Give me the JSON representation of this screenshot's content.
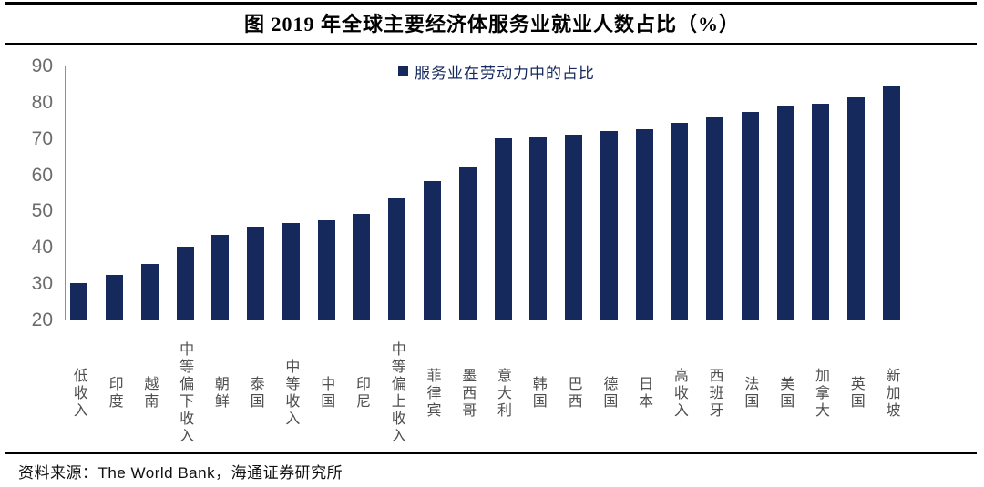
{
  "title": "图 2019 年全球主要经济体服务业就业人数占比（%）",
  "legend": {
    "label": "服务业在劳动力中的占比",
    "swatch_icon": "filled-square"
  },
  "source": "资料来源：The World Bank，海通证券研究所",
  "colors": {
    "bar": "#16295c",
    "legend_text": "#16295c",
    "tick_label": "#6b6b6b",
    "category_label": "#4f4f4f",
    "axis_line": "#8f8f8f"
  },
  "chart_data": {
    "type": "bar",
    "title": "图 2019 年全球主要经济体服务业就业人数占比（%）",
    "series": [
      {
        "name": "服务业在劳动力中的占比",
        "values": [
          30.0,
          32.2,
          35.3,
          40.1,
          43.4,
          45.6,
          46.7,
          47.3,
          49.1,
          53.3,
          58.1,
          62.0,
          70.0,
          70.3,
          71.0,
          71.9,
          72.5,
          74.3,
          75.7,
          77.1,
          78.9,
          79.4,
          81.1,
          84.6
        ]
      }
    ],
    "categories": [
      "低收入",
      "印度",
      "越南",
      "中等偏下收入",
      "朝鲜",
      "泰国",
      "中等收入",
      "中国",
      "印尼",
      "中等偏上收入",
      "菲律宾",
      "墨西哥",
      "意大利",
      "韩国",
      "巴西",
      "德国",
      "日本",
      "高收入",
      "西班牙",
      "法国",
      "美国",
      "加拿大",
      "英国",
      "新加坡"
    ],
    "xlabel": "",
    "ylabel": "",
    "ylim": [
      20,
      90
    ],
    "yticks": [
      90,
      80,
      70,
      60,
      50,
      40,
      30,
      20
    ],
    "grid": false,
    "legend_position": "top-center",
    "bar_color": "#16295c",
    "source": "资料来源：The World Bank，海通证券研究所"
  }
}
